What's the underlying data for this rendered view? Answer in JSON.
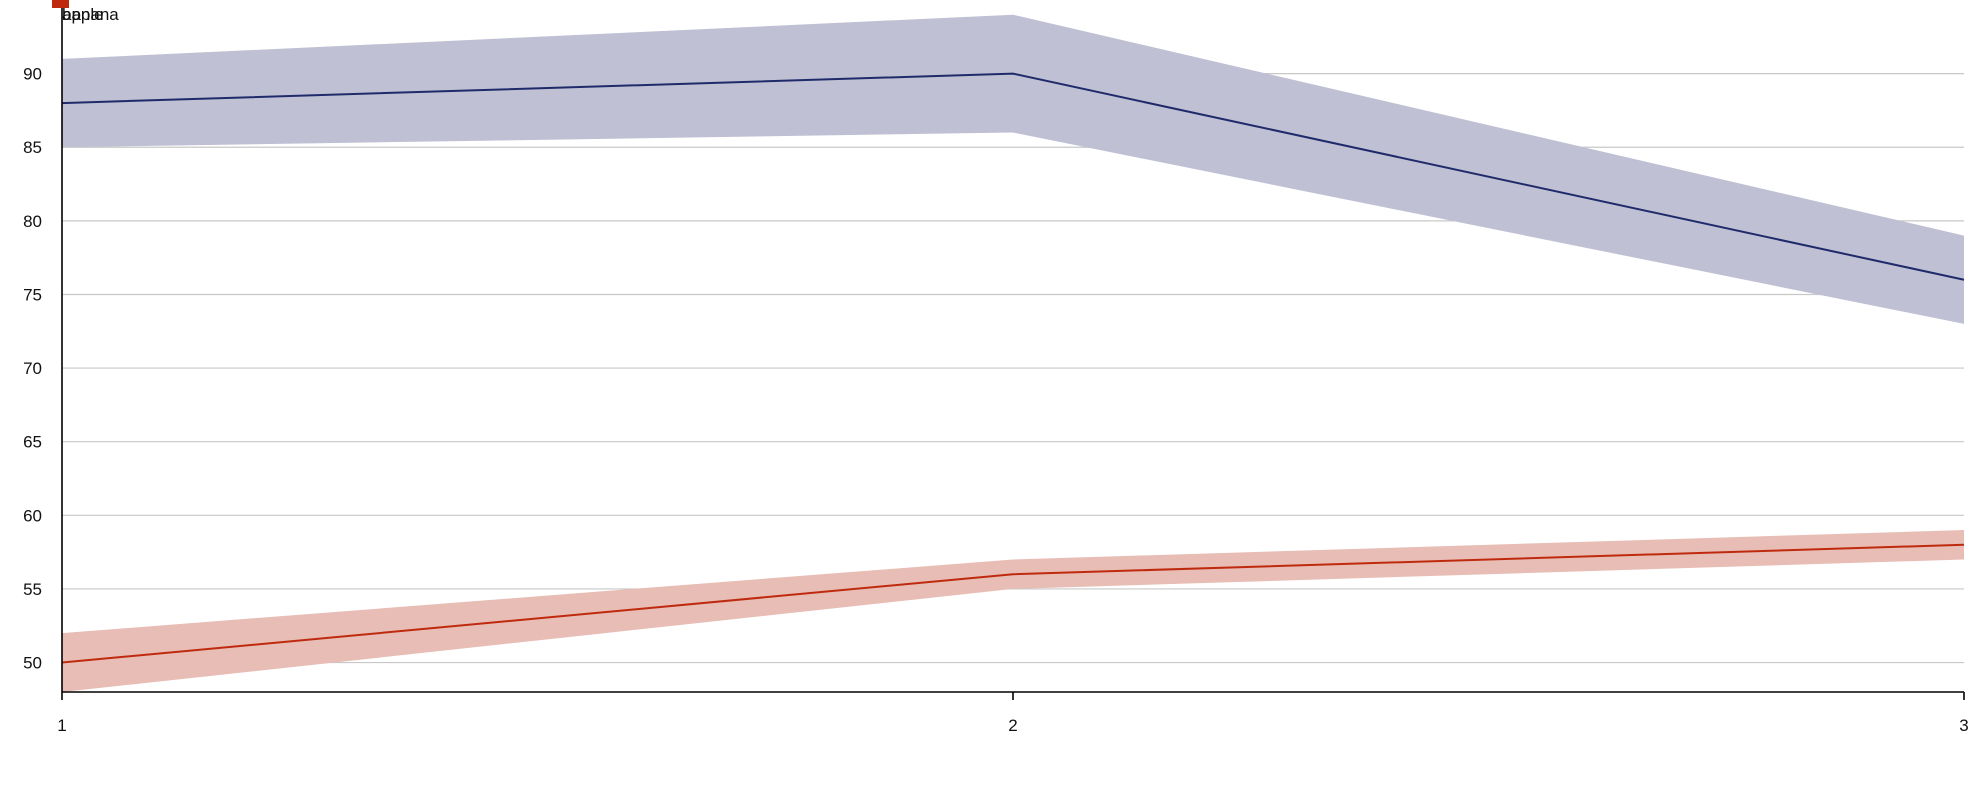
{
  "chart_data": {
    "type": "line",
    "x": [
      1,
      2,
      3
    ],
    "xlim": [
      1,
      3
    ],
    "ylim": [
      48,
      95
    ],
    "x_ticks": [
      1,
      2,
      3
    ],
    "y_ticks": [
      50,
      55,
      60,
      65,
      70,
      75,
      80,
      85,
      90
    ],
    "grid": "horizontal",
    "legend_position": "top-left",
    "series": [
      {
        "name": "apple",
        "values": [
          88,
          90,
          76
        ],
        "band_low": [
          85,
          86,
          73
        ],
        "band_high": [
          91,
          94,
          79
        ],
        "color": "#1f2a6b",
        "band_color": "#bfc0d3"
      },
      {
        "name": "banana",
        "values": [
          50,
          56,
          58
        ],
        "band_low": [
          48,
          55,
          57
        ],
        "band_high": [
          52,
          57,
          59
        ],
        "color": "#bf2a0f",
        "band_color": "#e7bdb5"
      }
    ]
  }
}
